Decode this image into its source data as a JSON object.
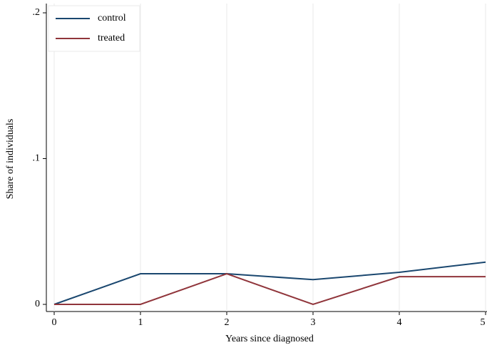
{
  "chart_data": {
    "type": "line",
    "xlabel": "Years since diagnosed",
    "ylabel": "Share of individuals",
    "x": [
      0,
      1,
      2,
      3,
      4,
      5
    ],
    "series": [
      {
        "name": "control",
        "color": "#1a476f",
        "values": [
          0,
          0.021,
          0.021,
          0.017,
          0.022,
          0.029
        ]
      },
      {
        "name": "treated",
        "color": "#90353b",
        "values": [
          0,
          0,
          0.021,
          0,
          0.019,
          0.019
        ]
      }
    ],
    "xlim": [
      0,
      5
    ],
    "xticks": [
      0,
      1,
      2,
      3,
      4,
      5
    ],
    "ylim": [
      0,
      0.2
    ],
    "yticks": [
      0,
      {
        "value": 0.1,
        "label": ".1"
      },
      {
        "value": 0.2,
        "label": ".2"
      }
    ],
    "grid": true,
    "legend": "upper left"
  }
}
